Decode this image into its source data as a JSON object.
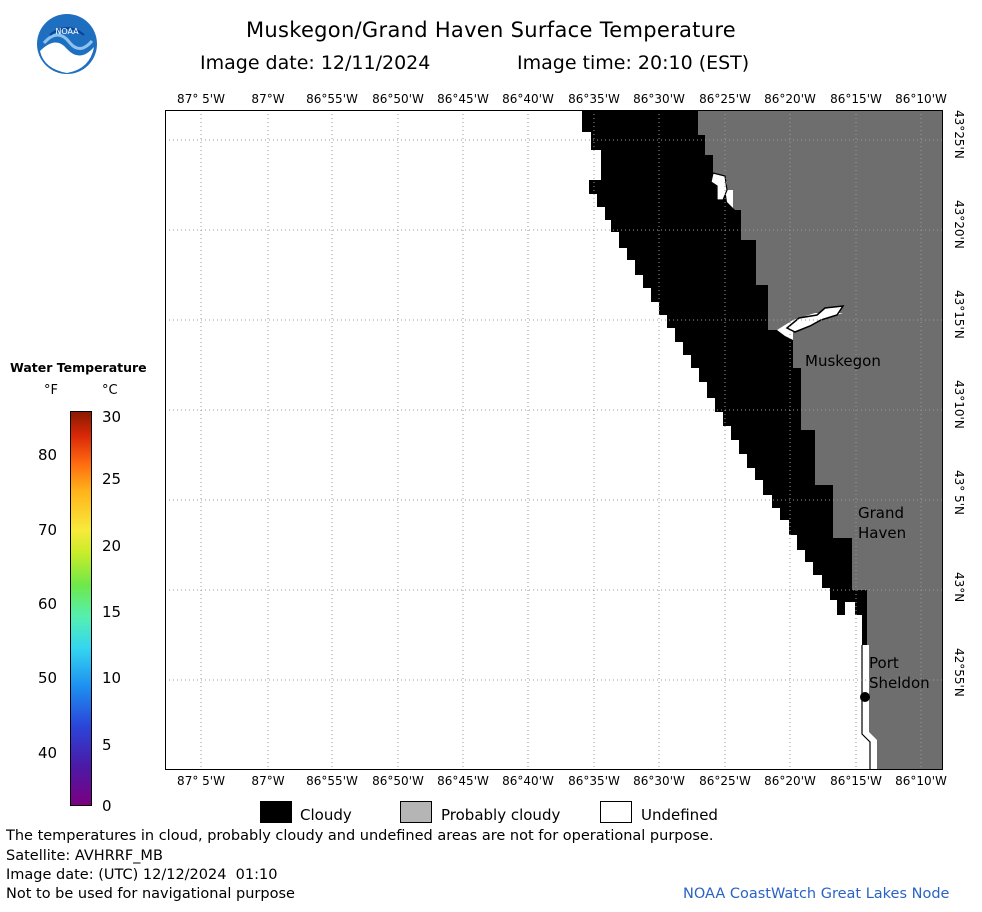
{
  "header": {
    "title": "Muskegon/Grand Haven Surface Temperature",
    "image_date": "Image date: 12/11/2024",
    "image_time": "Image time: 20:10 (EST)"
  },
  "logo": {
    "text": "NOAA",
    "icon": "noaa-logo-icon"
  },
  "map": {
    "lon_labels": [
      "87° 5'W",
      "87°W",
      "86°55'W",
      "86°50'W",
      "86°45'W",
      "86°40'W",
      "86°35'W",
      "86°30'W",
      "86°25'W",
      "86°20'W",
      "86°15'W",
      "86°10'W"
    ],
    "lat_labels": [
      "43°25'N",
      "43°20'N",
      "43°15'N",
      "43°10'N",
      "43° 5'N",
      "43°N",
      "42°55'N"
    ],
    "places": {
      "muskegon": "Muskegon",
      "grand_haven_1": "Grand",
      "grand_haven_2": "Haven",
      "port_sheldon_1": "Port",
      "port_sheldon_2": "Sheldon"
    },
    "colors": {
      "cloudy": "#000000",
      "land": "#6e6e6e",
      "water_undefined": "#ffffff",
      "grid": "#9a9a9a"
    }
  },
  "legend": {
    "title": "Water Temperature",
    "unit_f": "°F",
    "unit_c": "°C",
    "f_ticks": [
      "80",
      "70",
      "60",
      "50",
      "40"
    ],
    "c_ticks": [
      "30",
      "25",
      "20",
      "15",
      "10",
      "5",
      "0"
    ],
    "c_range": [
      0,
      30
    ]
  },
  "key": {
    "cloudy": "Cloudy",
    "probably_cloudy": "Probably cloudy",
    "undefined": "Undefined",
    "colors": {
      "cloudy": "#000000",
      "probably_cloudy": "#b5b5b5",
      "undefined": "#ffffff"
    }
  },
  "footer": {
    "disclaimer": "The temperatures in cloud, probably cloudy and undefined areas are not for operational purpose.",
    "satellite": "Satellite: AVHRRF_MB",
    "image_date_utc": "Image date: (UTC) 12/12/2024  01:10",
    "nav_warning": "Not to be used for navigational purpose",
    "node": "NOAA CoastWatch Great Lakes Node"
  }
}
